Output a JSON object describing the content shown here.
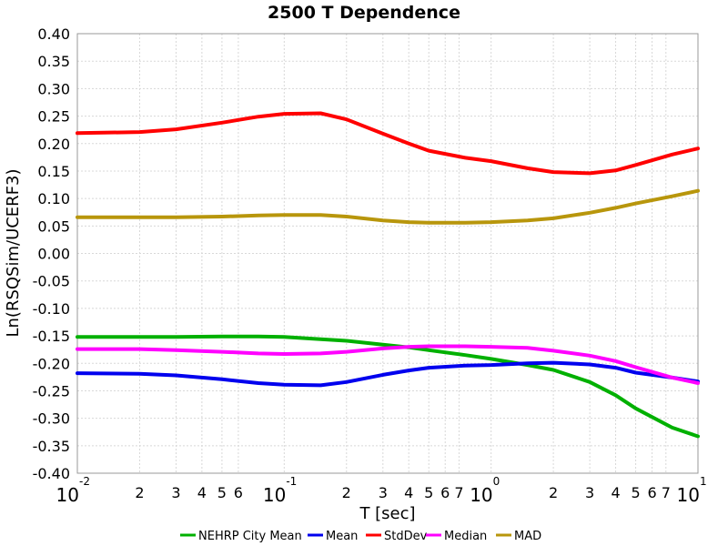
{
  "chart_data": {
    "type": "line",
    "title": "2500 T Dependence",
    "xlabel": "T [sec]",
    "ylabel": "Ln(RSQSim/UCERF3)",
    "x_scale": "log",
    "xlim": [
      0.01,
      10
    ],
    "ylim": [
      -0.4,
      0.4
    ],
    "grid": true,
    "legend_position": "bottom",
    "ytick_labels": [
      "-0.40",
      "-0.35",
      "-0.30",
      "-0.25",
      "-0.20",
      "-0.15",
      "-0.10",
      "-0.05",
      "0.00",
      "0.05",
      "0.10",
      "0.15",
      "0.20",
      "0.25",
      "0.30",
      "0.35",
      "0.40"
    ],
    "xtick_major": [
      {
        "value": 0.01,
        "base": "10",
        "exp": "-2"
      },
      {
        "value": 0.1,
        "base": "10",
        "exp": "-1"
      },
      {
        "value": 1,
        "base": "10",
        "exp": "0"
      },
      {
        "value": 10,
        "base": "10",
        "exp": "1"
      }
    ],
    "xtick_minor": [
      {
        "value": 0.02,
        "label": "2"
      },
      {
        "value": 0.03,
        "label": "3"
      },
      {
        "value": 0.04,
        "label": "4"
      },
      {
        "value": 0.05,
        "label": "5"
      },
      {
        "value": 0.06,
        "label": "6"
      },
      {
        "value": 0.2,
        "label": "2"
      },
      {
        "value": 0.3,
        "label": "3"
      },
      {
        "value": 0.4,
        "label": "4"
      },
      {
        "value": 0.5,
        "label": "5"
      },
      {
        "value": 0.6,
        "label": "6"
      },
      {
        "value": 0.7,
        "label": "7"
      },
      {
        "value": 2,
        "label": "2"
      },
      {
        "value": 3,
        "label": "3"
      },
      {
        "value": 4,
        "label": "4"
      },
      {
        "value": 5,
        "label": "5"
      },
      {
        "value": 6,
        "label": "6"
      },
      {
        "value": 7,
        "label": "7"
      }
    ],
    "x": [
      0.01,
      0.02,
      0.03,
      0.05,
      0.075,
      0.1,
      0.15,
      0.2,
      0.3,
      0.4,
      0.5,
      0.75,
      1.0,
      1.5,
      2.0,
      3.0,
      4.0,
      5.0,
      7.5,
      10.0
    ],
    "series": [
      {
        "name": "NEHRP City Mean",
        "color": "#00b000",
        "values": [
          -0.152,
          -0.152,
          -0.152,
          -0.151,
          -0.151,
          -0.152,
          -0.156,
          -0.159,
          -0.166,
          -0.171,
          -0.176,
          -0.185,
          -0.192,
          -0.203,
          -0.212,
          -0.234,
          -0.258,
          -0.282,
          -0.317,
          -0.333
        ]
      },
      {
        "name": "Mean",
        "color": "#0000ee",
        "values": [
          -0.218,
          -0.219,
          -0.222,
          -0.229,
          -0.236,
          -0.239,
          -0.24,
          -0.234,
          -0.221,
          -0.213,
          -0.208,
          -0.204,
          -0.203,
          -0.2,
          -0.199,
          -0.202,
          -0.208,
          -0.217,
          -0.226,
          -0.233
        ]
      },
      {
        "name": "StdDev",
        "color": "#ff0000",
        "values": [
          0.219,
          0.221,
          0.226,
          0.238,
          0.249,
          0.254,
          0.255,
          0.244,
          0.218,
          0.2,
          0.187,
          0.174,
          0.168,
          0.155,
          0.148,
          0.146,
          0.151,
          0.161,
          0.18,
          0.191
        ]
      },
      {
        "name": "Median",
        "color": "#ff00ff",
        "values": [
          -0.174,
          -0.174,
          -0.176,
          -0.179,
          -0.182,
          -0.183,
          -0.182,
          -0.179,
          -0.173,
          -0.17,
          -0.169,
          -0.169,
          -0.17,
          -0.172,
          -0.177,
          -0.186,
          -0.196,
          -0.207,
          -0.226,
          -0.236
        ]
      },
      {
        "name": "MAD",
        "color": "#b8960c",
        "values": [
          0.066,
          0.066,
          0.066,
          0.067,
          0.069,
          0.07,
          0.07,
          0.067,
          0.06,
          0.057,
          0.056,
          0.056,
          0.057,
          0.06,
          0.064,
          0.074,
          0.083,
          0.091,
          0.104,
          0.114
        ]
      }
    ]
  }
}
